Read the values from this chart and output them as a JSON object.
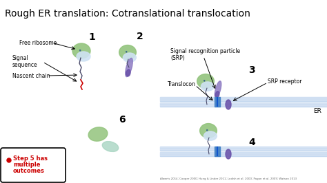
{
  "title": "Rough ER translation: Cotranslational translocation",
  "title_fontsize": 10,
  "bg_color": "#ffffff",
  "label_step5_line1": "Step 5 has",
  "label_step5_line2": "multiple",
  "label_step5_line3": "outcomes",
  "citation": "Alwerts 2014; Cooper 2000; Hung & Linder 2011; Lodish et al. 2000; Pagan et al. 2009; Watson 2013",
  "labels": {
    "free_ribosome": "Free ribosome",
    "signal_sequence": "Signal\nsequence",
    "nascent_chain": "Nascent chain",
    "srp": "Signal recognition particle\n(SRP)",
    "translocon": "Translocon",
    "srp_receptor": "SRP receptor",
    "er": "ER",
    "step1": "1",
    "step2": "2",
    "step3": "3",
    "step4": "4",
    "step6": "6"
  },
  "membrane_color": "#c6d9f0",
  "membrane_stripe_color": "#ffffff",
  "ribosome_green": "#93c47d",
  "ribosome_blue_light": "#cfe2f3",
  "srp_purple": "#8e7cc3",
  "srp_purple_dark": "#674ea7",
  "translocon_blue": "#4a86c8",
  "translocon_dark": "#1155cc",
  "chain_color": "#4a4a6a",
  "signal_red": "#cc0000"
}
